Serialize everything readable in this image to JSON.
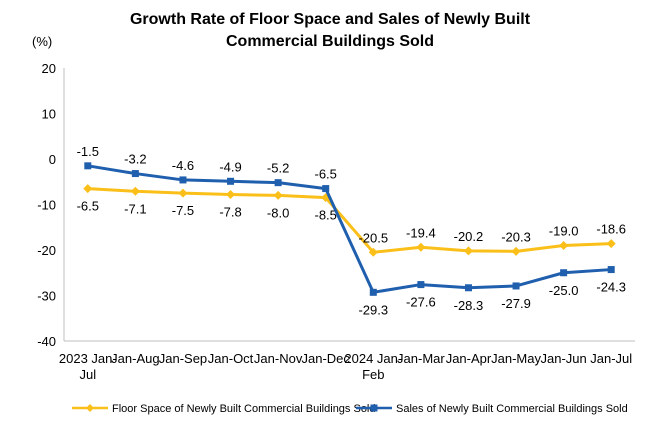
{
  "chart_data": {
    "type": "line",
    "title_lines": [
      "Growth Rate of Floor Space and Sales of Newly Built",
      "Commercial Buildings Sold"
    ],
    "unit_label": "(%)",
    "categories": [
      [
        "2023 Jan-",
        "Jul"
      ],
      [
        "Jan-Aug"
      ],
      [
        "Jan-Sep"
      ],
      [
        "Jan-Oct"
      ],
      [
        "Jan-Nov"
      ],
      [
        "Jan-Dec"
      ],
      [
        "2024 Jan-",
        "Feb"
      ],
      [
        "Jan-Mar"
      ],
      [
        "Jan-Apr"
      ],
      [
        "Jan-May"
      ],
      [
        "Jan-Jun"
      ],
      [
        "Jan-Jul"
      ]
    ],
    "ylim": [
      -40,
      20
    ],
    "yticks": [
      20,
      10,
      0,
      -10,
      -20,
      -30,
      -40
    ],
    "grid": false,
    "legend_position": "bottom",
    "series": [
      {
        "name": "Floor Space of Newly Built Commercial Buildings Sold",
        "color": "#FBBF1A",
        "marker": "diamond",
        "label_position": [
          "below",
          "below",
          "below",
          "below",
          "below",
          "below",
          "above",
          "above",
          "above",
          "above",
          "above",
          "above"
        ],
        "values": [
          -6.5,
          -7.1,
          -7.5,
          -7.8,
          -8.0,
          -8.5,
          -20.5,
          -19.4,
          -20.2,
          -20.3,
          -19.0,
          -18.6
        ]
      },
      {
        "name": "Sales of Newly Built Commercial Buildings Sold",
        "color": "#1F5FAE",
        "marker": "square",
        "label_position": [
          "above",
          "above",
          "above",
          "above",
          "above",
          "above",
          "below",
          "below",
          "below",
          "below",
          "below",
          "below"
        ],
        "values": [
          -1.5,
          -3.2,
          -4.6,
          -4.9,
          -5.2,
          -6.5,
          -29.3,
          -27.6,
          -28.3,
          -27.9,
          -25.0,
          -24.3
        ]
      }
    ]
  }
}
